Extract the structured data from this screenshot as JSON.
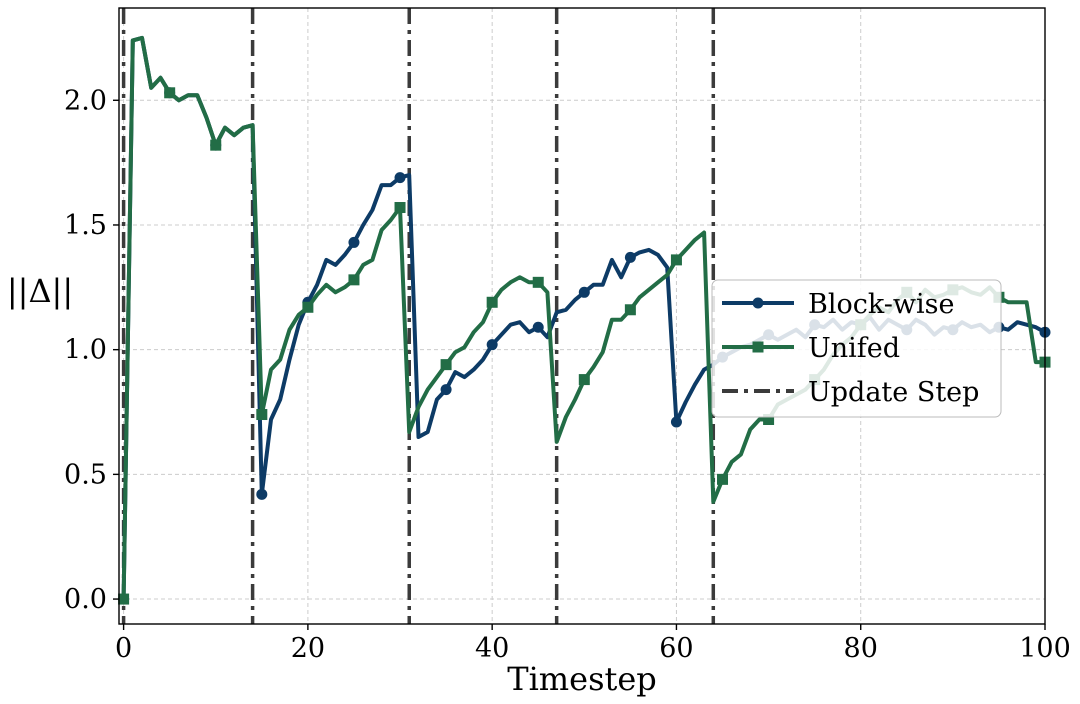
{
  "chart_data": {
    "type": "line",
    "xlabel": "Timestep",
    "ylabel": "||Δ||",
    "xlim": [
      -0.5,
      100
    ],
    "ylim": [
      -0.1,
      2.37
    ],
    "xticks": [
      0,
      20,
      40,
      60,
      80,
      100
    ],
    "yticks": [
      0.0,
      0.5,
      1.0,
      1.5,
      2.0
    ],
    "grid": true,
    "legend_position": "center-right",
    "update_steps": [
      0,
      14,
      31,
      47,
      64
    ],
    "update_step_label": "Update Step",
    "series": [
      {
        "name": "Block-wise",
        "color": "#0d3b66",
        "marker": "circle",
        "marker_every": 5,
        "x": [
          0,
          1,
          2,
          3,
          4,
          5,
          6,
          7,
          8,
          9,
          10,
          11,
          12,
          13,
          14,
          15,
          16,
          17,
          18,
          19,
          20,
          21,
          22,
          23,
          24,
          25,
          26,
          27,
          28,
          29,
          30,
          31,
          32,
          33,
          34,
          35,
          36,
          37,
          38,
          39,
          40,
          41,
          42,
          43,
          44,
          45,
          46,
          47,
          48,
          49,
          50,
          51,
          52,
          53,
          54,
          55,
          56,
          57,
          58,
          59,
          60,
          61,
          62,
          63,
          64,
          65,
          66,
          67,
          68,
          69,
          70,
          71,
          72,
          73,
          74,
          75,
          76,
          77,
          78,
          79,
          80,
          81,
          82,
          83,
          84,
          85,
          86,
          87,
          88,
          89,
          90,
          91,
          92,
          93,
          94,
          95,
          96,
          97,
          98,
          99,
          100
        ],
        "y": [
          0.0,
          2.24,
          2.25,
          2.05,
          2.09,
          2.03,
          2.0,
          2.02,
          2.02,
          1.93,
          1.82,
          1.89,
          1.86,
          1.89,
          1.9,
          0.42,
          0.72,
          0.8,
          0.96,
          1.1,
          1.19,
          1.26,
          1.36,
          1.34,
          1.38,
          1.43,
          1.5,
          1.56,
          1.66,
          1.66,
          1.69,
          1.7,
          0.65,
          0.67,
          0.8,
          0.84,
          0.91,
          0.89,
          0.92,
          0.96,
          1.02,
          1.06,
          1.1,
          1.11,
          1.07,
          1.09,
          1.05,
          1.15,
          1.16,
          1.2,
          1.23,
          1.26,
          1.26,
          1.36,
          1.29,
          1.37,
          1.39,
          1.4,
          1.38,
          1.33,
          0.71,
          0.79,
          0.86,
          0.92,
          0.94,
          0.97,
          0.99,
          1.01,
          1.02,
          1.04,
          1.06,
          1.04,
          1.06,
          1.08,
          1.05,
          1.1,
          1.09,
          1.12,
          1.08,
          1.11,
          1.1,
          1.13,
          1.08,
          1.12,
          1.1,
          1.08,
          1.12,
          1.1,
          1.06,
          1.09,
          1.08,
          1.11,
          1.09,
          1.1,
          1.07,
          1.09,
          1.08,
          1.11,
          1.1,
          1.09,
          1.07
        ]
      },
      {
        "name": "Unifed",
        "color": "#226d46",
        "marker": "square",
        "marker_every": 5,
        "x": [
          0,
          1,
          2,
          3,
          4,
          5,
          6,
          7,
          8,
          9,
          10,
          11,
          12,
          13,
          14,
          15,
          16,
          17,
          18,
          19,
          20,
          21,
          22,
          23,
          24,
          25,
          26,
          27,
          28,
          29,
          30,
          31,
          32,
          33,
          34,
          35,
          36,
          37,
          38,
          39,
          40,
          41,
          42,
          43,
          44,
          45,
          46,
          47,
          48,
          49,
          50,
          51,
          52,
          53,
          54,
          55,
          56,
          57,
          58,
          59,
          60,
          61,
          62,
          63,
          64,
          65,
          66,
          67,
          68,
          69,
          70,
          71,
          72,
          73,
          74,
          75,
          76,
          77,
          78,
          79,
          80,
          81,
          82,
          83,
          84,
          85,
          86,
          87,
          88,
          89,
          90,
          91,
          92,
          93,
          94,
          95,
          96,
          97,
          98,
          99,
          100
        ],
        "y": [
          0.0,
          2.24,
          2.25,
          2.05,
          2.09,
          2.03,
          2.0,
          2.02,
          2.02,
          1.93,
          1.82,
          1.89,
          1.86,
          1.89,
          1.9,
          0.74,
          0.92,
          0.96,
          1.08,
          1.14,
          1.17,
          1.22,
          1.26,
          1.23,
          1.25,
          1.28,
          1.34,
          1.36,
          1.48,
          1.52,
          1.57,
          0.67,
          0.77,
          0.84,
          0.89,
          0.94,
          0.99,
          1.01,
          1.07,
          1.11,
          1.19,
          1.24,
          1.27,
          1.29,
          1.27,
          1.27,
          1.23,
          0.63,
          0.73,
          0.8,
          0.88,
          0.93,
          0.99,
          1.12,
          1.12,
          1.16,
          1.21,
          1.24,
          1.27,
          1.3,
          1.36,
          1.4,
          1.44,
          1.47,
          0.39,
          0.48,
          0.55,
          0.58,
          0.68,
          0.72,
          0.72,
          0.78,
          0.8,
          0.82,
          0.84,
          0.88,
          0.92,
          0.98,
          1.02,
          1.05,
          1.1,
          1.14,
          1.17,
          1.15,
          1.2,
          1.23,
          1.19,
          1.24,
          1.21,
          1.22,
          1.24,
          1.25,
          1.23,
          1.22,
          1.25,
          1.21,
          1.19,
          1.19,
          1.19,
          0.95,
          0.95
        ]
      }
    ]
  }
}
